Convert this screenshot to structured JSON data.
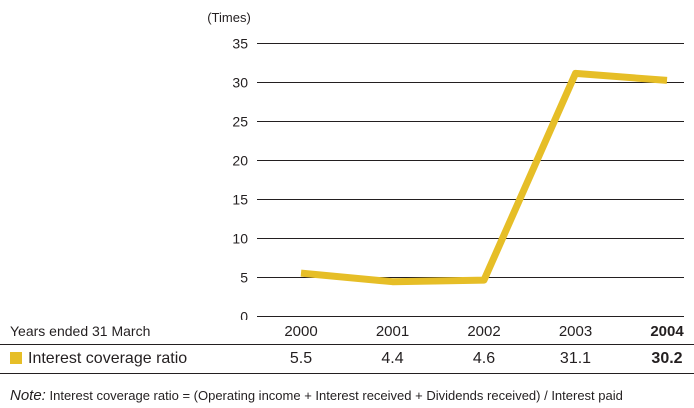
{
  "chart_data": {
    "type": "line",
    "unit_label": "(Times)",
    "y_ticks": [
      0,
      5,
      10,
      15,
      20,
      25,
      30,
      35
    ],
    "ylim": [
      0,
      35
    ],
    "grid": true,
    "x_header": "Years ended 31 March",
    "categories": [
      "2000",
      "2001",
      "2002",
      "2003",
      "2004"
    ],
    "highlight_category": "2004",
    "series": [
      {
        "name": "Interest coverage ratio",
        "color": "#e6be27",
        "values": [
          5.5,
          4.4,
          4.6,
          31.1,
          30.2
        ],
        "value_labels": [
          "5.5",
          "4.4",
          "4.6",
          "31.1",
          "30.2"
        ]
      }
    ]
  },
  "note": {
    "label": "Note:",
    "text": "Interest coverage ratio = (Operating income + Interest received + Dividends received) / Interest paid"
  }
}
